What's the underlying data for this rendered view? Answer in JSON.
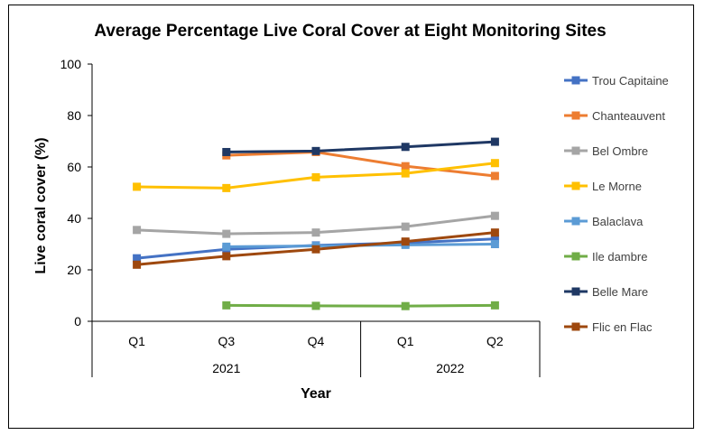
{
  "chart_data": {
    "type": "line",
    "title": "Average Percentage Live Coral Cover at Eight Monitoring Sites",
    "xlabel": "Year",
    "ylabel": "Live coral cover (%)",
    "ylim": [
      0,
      100
    ],
    "yticks": [
      0,
      20,
      40,
      60,
      80,
      100
    ],
    "categories": [
      "Q1",
      "Q3",
      "Q4",
      "Q1",
      "Q2"
    ],
    "year_groups": [
      {
        "label": "2021",
        "start": 0,
        "end": 2
      },
      {
        "label": "2022",
        "start": 3,
        "end": 4
      }
    ],
    "legend_position": "right",
    "series": [
      {
        "name": "Trou Capitaine",
        "color": "#4472C4",
        "values": [
          24.5,
          28.0,
          29.5,
          30.5,
          32.0
        ]
      },
      {
        "name": "Chanteauvent",
        "color": "#ED7D31",
        "values": [
          null,
          64.5,
          65.8,
          60.3,
          56.5
        ]
      },
      {
        "name": "Bel Ombre",
        "color": "#A5A5A5",
        "values": [
          35.5,
          34.0,
          34.5,
          36.8,
          41.0
        ]
      },
      {
        "name": "Le Morne",
        "color": "#FFC000",
        "values": [
          52.3,
          51.8,
          56.0,
          57.5,
          61.5
        ]
      },
      {
        "name": "Balaclava",
        "color": "#5B9BD5",
        "values": [
          null,
          29.0,
          29.3,
          29.7,
          30.0
        ]
      },
      {
        "name": "Ile dambre",
        "color": "#70AD47",
        "values": [
          null,
          6.2,
          6.0,
          5.9,
          6.2
        ]
      },
      {
        "name": "Belle Mare",
        "color": "#1F3864",
        "values": [
          null,
          65.8,
          66.2,
          67.8,
          69.8
        ]
      },
      {
        "name": "Flic en Flac",
        "color": "#9E480E",
        "values": [
          22.0,
          25.3,
          28.0,
          31.0,
          34.5
        ]
      }
    ]
  }
}
